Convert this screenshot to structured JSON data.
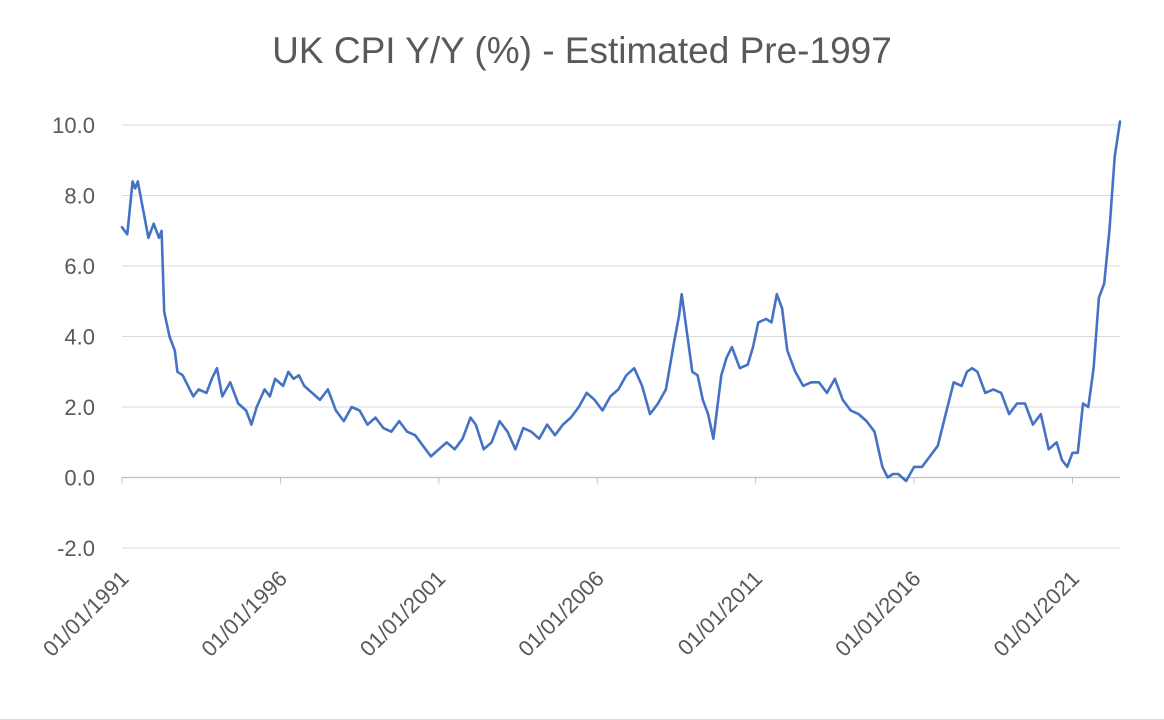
{
  "chart_data": {
    "type": "line",
    "title": "UK CPI Y/Y (%) - Estimated Pre-1997",
    "xlabel": "",
    "ylabel": "",
    "ylim": [
      -2.0,
      10.0
    ],
    "yticks": [
      "-2.0",
      "0.0",
      "2.0",
      "4.0",
      "6.0",
      "8.0",
      "10.0"
    ],
    "xticks": [
      "01/01/1991",
      "01/01/1996",
      "01/01/2001",
      "01/01/2006",
      "01/01/2011",
      "01/01/2016",
      "01/01/2021"
    ],
    "xlim": [
      "1991-01",
      "2022-07"
    ],
    "grid": "horizontal",
    "legend": "none",
    "series": [
      {
        "color": "#4472C4",
        "points": [
          [
            "1991-01",
            7.1
          ],
          [
            "1991-03",
            6.9
          ],
          [
            "1991-05",
            8.4
          ],
          [
            "1991-06",
            8.2
          ],
          [
            "1991-07",
            8.4
          ],
          [
            "1991-09",
            7.6
          ],
          [
            "1991-11",
            6.8
          ],
          [
            "1992-01",
            7.2
          ],
          [
            "1992-03",
            6.8
          ],
          [
            "1992-04",
            7.0
          ],
          [
            "1992-05",
            4.7
          ],
          [
            "1992-07",
            4.0
          ],
          [
            "1992-09",
            3.6
          ],
          [
            "1992-10",
            3.0
          ],
          [
            "1992-12",
            2.9
          ],
          [
            "1993-02",
            2.6
          ],
          [
            "1993-04",
            2.3
          ],
          [
            "1993-06",
            2.5
          ],
          [
            "1993-09",
            2.4
          ],
          [
            "1993-11",
            2.8
          ],
          [
            "1994-01",
            3.1
          ],
          [
            "1994-03",
            2.3
          ],
          [
            "1994-06",
            2.7
          ],
          [
            "1994-09",
            2.1
          ],
          [
            "1994-12",
            1.9
          ],
          [
            "1995-02",
            1.5
          ],
          [
            "1995-04",
            2.0
          ],
          [
            "1995-07",
            2.5
          ],
          [
            "1995-09",
            2.3
          ],
          [
            "1995-11",
            2.8
          ],
          [
            "1996-02",
            2.6
          ],
          [
            "1996-04",
            3.0
          ],
          [
            "1996-06",
            2.8
          ],
          [
            "1996-08",
            2.9
          ],
          [
            "1996-10",
            2.6
          ],
          [
            "1997-01",
            2.4
          ],
          [
            "1997-04",
            2.2
          ],
          [
            "1997-07",
            2.5
          ],
          [
            "1997-10",
            1.9
          ],
          [
            "1998-01",
            1.6
          ],
          [
            "1998-04",
            2.0
          ],
          [
            "1998-07",
            1.9
          ],
          [
            "1998-10",
            1.5
          ],
          [
            "1999-01",
            1.7
          ],
          [
            "1999-04",
            1.4
          ],
          [
            "1999-07",
            1.3
          ],
          [
            "1999-10",
            1.6
          ],
          [
            "2000-01",
            1.3
          ],
          [
            "2000-04",
            1.2
          ],
          [
            "2000-07",
            0.9
          ],
          [
            "2000-10",
            0.6
          ],
          [
            "2001-01",
            0.8
          ],
          [
            "2001-04",
            1.0
          ],
          [
            "2001-07",
            0.8
          ],
          [
            "2001-10",
            1.1
          ],
          [
            "2002-01",
            1.7
          ],
          [
            "2002-03",
            1.5
          ],
          [
            "2002-06",
            0.8
          ],
          [
            "2002-09",
            1.0
          ],
          [
            "2002-12",
            1.6
          ],
          [
            "2003-03",
            1.3
          ],
          [
            "2003-06",
            0.8
          ],
          [
            "2003-09",
            1.4
          ],
          [
            "2003-12",
            1.3
          ],
          [
            "2004-03",
            1.1
          ],
          [
            "2004-06",
            1.5
          ],
          [
            "2004-09",
            1.2
          ],
          [
            "2004-12",
            1.5
          ],
          [
            "2005-03",
            1.7
          ],
          [
            "2005-06",
            2.0
          ],
          [
            "2005-09",
            2.4
          ],
          [
            "2005-12",
            2.2
          ],
          [
            "2006-03",
            1.9
          ],
          [
            "2006-06",
            2.3
          ],
          [
            "2006-09",
            2.5
          ],
          [
            "2006-12",
            2.9
          ],
          [
            "2007-03",
            3.1
          ],
          [
            "2007-06",
            2.6
          ],
          [
            "2007-09",
            1.8
          ],
          [
            "2007-12",
            2.1
          ],
          [
            "2008-03",
            2.5
          ],
          [
            "2008-06",
            3.8
          ],
          [
            "2008-08",
            4.6
          ],
          [
            "2008-09",
            5.2
          ],
          [
            "2008-11",
            4.1
          ],
          [
            "2009-01",
            3.0
          ],
          [
            "2009-03",
            2.9
          ],
          [
            "2009-05",
            2.2
          ],
          [
            "2009-07",
            1.8
          ],
          [
            "2009-09",
            1.1
          ],
          [
            "2009-12",
            2.9
          ],
          [
            "2010-02",
            3.4
          ],
          [
            "2010-04",
            3.7
          ],
          [
            "2010-07",
            3.1
          ],
          [
            "2010-10",
            3.2
          ],
          [
            "2010-12",
            3.7
          ],
          [
            "2011-02",
            4.4
          ],
          [
            "2011-05",
            4.5
          ],
          [
            "2011-07",
            4.4
          ],
          [
            "2011-09",
            5.2
          ],
          [
            "2011-11",
            4.8
          ],
          [
            "2012-01",
            3.6
          ],
          [
            "2012-04",
            3.0
          ],
          [
            "2012-07",
            2.6
          ],
          [
            "2012-10",
            2.7
          ],
          [
            "2013-01",
            2.7
          ],
          [
            "2013-04",
            2.4
          ],
          [
            "2013-07",
            2.8
          ],
          [
            "2013-10",
            2.2
          ],
          [
            "2014-01",
            1.9
          ],
          [
            "2014-04",
            1.8
          ],
          [
            "2014-07",
            1.6
          ],
          [
            "2014-10",
            1.3
          ],
          [
            "2015-01",
            0.3
          ],
          [
            "2015-03",
            0.0
          ],
          [
            "2015-05",
            0.1
          ],
          [
            "2015-07",
            0.1
          ],
          [
            "2015-10",
            -0.1
          ],
          [
            "2016-01",
            0.3
          ],
          [
            "2016-04",
            0.3
          ],
          [
            "2016-07",
            0.6
          ],
          [
            "2016-10",
            0.9
          ],
          [
            "2017-01",
            1.8
          ],
          [
            "2017-04",
            2.7
          ],
          [
            "2017-07",
            2.6
          ],
          [
            "2017-09",
            3.0
          ],
          [
            "2017-11",
            3.1
          ],
          [
            "2018-01",
            3.0
          ],
          [
            "2018-04",
            2.4
          ],
          [
            "2018-07",
            2.5
          ],
          [
            "2018-10",
            2.4
          ],
          [
            "2019-01",
            1.8
          ],
          [
            "2019-04",
            2.1
          ],
          [
            "2019-07",
            2.1
          ],
          [
            "2019-10",
            1.5
          ],
          [
            "2020-01",
            1.8
          ],
          [
            "2020-04",
            0.8
          ],
          [
            "2020-07",
            1.0
          ],
          [
            "2020-09",
            0.5
          ],
          [
            "2020-11",
            0.3
          ],
          [
            "2021-01",
            0.7
          ],
          [
            "2021-03",
            0.7
          ],
          [
            "2021-05",
            2.1
          ],
          [
            "2021-07",
            2.0
          ],
          [
            "2021-09",
            3.1
          ],
          [
            "2021-11",
            5.1
          ],
          [
            "2022-01",
            5.5
          ],
          [
            "2022-03",
            7.0
          ],
          [
            "2022-05",
            9.1
          ],
          [
            "2022-07",
            10.1
          ]
        ]
      }
    ]
  }
}
